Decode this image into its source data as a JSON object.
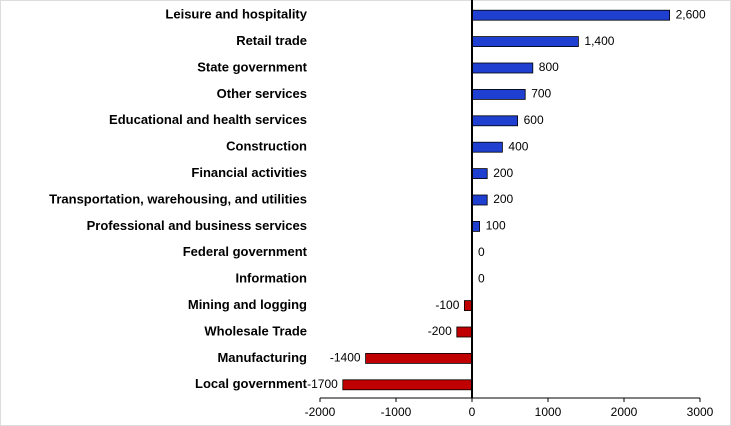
{
  "chart_data": {
    "type": "hbar",
    "categories": [
      "Leisure and hospitality",
      "Retail trade",
      "State government",
      "Other services",
      "Educational and health services",
      "Construction",
      "Financial activities",
      "Transportation, warehousing, and utilities",
      "Professional and business services",
      "Federal government",
      "Information",
      "Mining and logging",
      "Wholesale Trade",
      "Manufacturing",
      "Local government"
    ],
    "values": [
      2600,
      1400,
      800,
      700,
      600,
      400,
      200,
      200,
      100,
      0,
      0,
      -100,
      -200,
      -1400,
      -1700
    ],
    "value_labels": [
      "2,600",
      "1,400",
      "800",
      "700",
      "600",
      "400",
      "200",
      "200",
      "100",
      "0",
      "0",
      "-100",
      "-200",
      "-1400",
      "-1700"
    ],
    "positive_color": "#1f3fd0",
    "negative_color": "#c00000",
    "xlim": [
      -2000,
      3000
    ],
    "xticks": [
      -2000,
      -1000,
      0,
      1000,
      2000,
      3000
    ]
  }
}
